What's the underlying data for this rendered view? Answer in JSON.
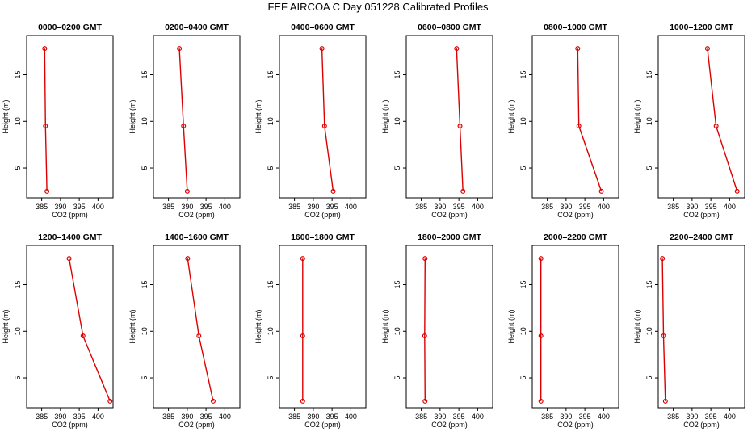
{
  "title": "FEF AIRCOA C  Day 051228  Calibrated Profiles",
  "colors": {
    "line": "#dd0000",
    "axis": "#000000"
  },
  "chart_data": [
    {
      "type": "line",
      "title": "0000–0200 GMT",
      "xlabel": "CO2 (ppm)",
      "ylabel": "Height (m)",
      "xlim": [
        381,
        404
      ],
      "ylim": [
        1.8,
        19.2
      ],
      "xticks": [
        385,
        390,
        395,
        400
      ],
      "yticks": [
        5,
        10,
        15
      ],
      "grid": false,
      "series": [
        {
          "x": [
            386.4,
            386.0,
            385.8
          ],
          "y": [
            2.5,
            9.5,
            17.8
          ]
        }
      ]
    },
    {
      "type": "line",
      "title": "0200–0400 GMT",
      "xlabel": "CO2 (ppm)",
      "ylabel": "Height (m)",
      "xlim": [
        381,
        404
      ],
      "ylim": [
        1.8,
        19.2
      ],
      "xticks": [
        385,
        390,
        395,
        400
      ],
      "yticks": [
        5,
        10,
        15
      ],
      "grid": false,
      "series": [
        {
          "x": [
            390.0,
            389.0,
            387.9
          ],
          "y": [
            2.5,
            9.5,
            17.8
          ]
        }
      ]
    },
    {
      "type": "line",
      "title": "0400–0600 GMT",
      "xlabel": "CO2 (ppm)",
      "ylabel": "Height (m)",
      "xlim": [
        381,
        404
      ],
      "ylim": [
        1.8,
        19.2
      ],
      "xticks": [
        385,
        390,
        395,
        400
      ],
      "yticks": [
        5,
        10,
        15
      ],
      "grid": false,
      "series": [
        {
          "x": [
            395.3,
            393.0,
            392.3
          ],
          "y": [
            2.5,
            9.5,
            17.8
          ]
        }
      ]
    },
    {
      "type": "line",
      "title": "0600–0800 GMT",
      "xlabel": "CO2 (ppm)",
      "ylabel": "Height (m)",
      "xlim": [
        381,
        404
      ],
      "ylim": [
        1.8,
        19.2
      ],
      "xticks": [
        385,
        390,
        395,
        400
      ],
      "yticks": [
        5,
        10,
        15
      ],
      "grid": false,
      "series": [
        {
          "x": [
            396.1,
            395.3,
            394.4
          ],
          "y": [
            2.5,
            9.5,
            17.8
          ]
        }
      ]
    },
    {
      "type": "line",
      "title": "0800–1000 GMT",
      "xlabel": "CO2 (ppm)",
      "ylabel": "Height (m)",
      "xlim": [
        381,
        404
      ],
      "ylim": [
        1.8,
        19.2
      ],
      "xticks": [
        385,
        390,
        395,
        400
      ],
      "yticks": [
        5,
        10,
        15
      ],
      "grid": false,
      "series": [
        {
          "x": [
            399.4,
            393.4,
            393.1
          ],
          "y": [
            2.5,
            9.5,
            17.8
          ]
        }
      ]
    },
    {
      "type": "line",
      "title": "1000–1200 GMT",
      "xlabel": "CO2 (ppm)",
      "ylabel": "Height (m)",
      "xlim": [
        381,
        404
      ],
      "ylim": [
        1.8,
        19.2
      ],
      "xticks": [
        385,
        390,
        395,
        400
      ],
      "yticks": [
        5,
        10,
        15
      ],
      "grid": false,
      "series": [
        {
          "x": [
            402.0,
            396.4,
            394.1
          ],
          "y": [
            2.5,
            9.5,
            17.8
          ]
        }
      ]
    },
    {
      "type": "line",
      "title": "1200–1400 GMT",
      "xlabel": "CO2 (ppm)",
      "ylabel": "Height (m)",
      "xlim": [
        381,
        404
      ],
      "ylim": [
        1.8,
        19.2
      ],
      "xticks": [
        385,
        390,
        395,
        400
      ],
      "yticks": [
        5,
        10,
        15
      ],
      "grid": false,
      "series": [
        {
          "x": [
            403.2,
            396.0,
            392.3
          ],
          "y": [
            2.5,
            9.5,
            17.8
          ]
        }
      ]
    },
    {
      "type": "line",
      "title": "1400–1600 GMT",
      "xlabel": "CO2 (ppm)",
      "ylabel": "Height (m)",
      "xlim": [
        381,
        404
      ],
      "ylim": [
        1.8,
        19.2
      ],
      "xticks": [
        385,
        390,
        395,
        400
      ],
      "yticks": [
        5,
        10,
        15
      ],
      "grid": false,
      "series": [
        {
          "x": [
            396.9,
            393.1,
            390.1
          ],
          "y": [
            2.5,
            9.5,
            17.8
          ]
        }
      ]
    },
    {
      "type": "line",
      "title": "1600–1800 GMT",
      "xlabel": "CO2 (ppm)",
      "ylabel": "Height (m)",
      "xlim": [
        381,
        404
      ],
      "ylim": [
        1.8,
        19.2
      ],
      "xticks": [
        385,
        390,
        395,
        400
      ],
      "yticks": [
        5,
        10,
        15
      ],
      "grid": false,
      "series": [
        {
          "x": [
            387.2,
            387.2,
            387.2
          ],
          "y": [
            2.5,
            9.5,
            17.8
          ]
        }
      ]
    },
    {
      "type": "line",
      "title": "1800–2000 GMT",
      "xlabel": "CO2 (ppm)",
      "ylabel": "Height (m)",
      "xlim": [
        381,
        404
      ],
      "ylim": [
        1.8,
        19.2
      ],
      "xticks": [
        385,
        390,
        395,
        400
      ],
      "yticks": [
        5,
        10,
        15
      ],
      "grid": false,
      "series": [
        {
          "x": [
            386.0,
            385.9,
            386.0
          ],
          "y": [
            2.5,
            9.5,
            17.8
          ]
        }
      ]
    },
    {
      "type": "line",
      "title": "2000–2200 GMT",
      "xlabel": "CO2 (ppm)",
      "ylabel": "Height (m)",
      "xlim": [
        381,
        404
      ],
      "ylim": [
        1.8,
        19.2
      ],
      "xticks": [
        385,
        390,
        395,
        400
      ],
      "yticks": [
        5,
        10,
        15
      ],
      "grid": false,
      "series": [
        {
          "x": [
            383.3,
            383.3,
            383.3
          ],
          "y": [
            2.5,
            9.5,
            17.8
          ]
        }
      ]
    },
    {
      "type": "line",
      "title": "2200–2400 GMT",
      "xlabel": "CO2 (ppm)",
      "ylabel": "Height (m)",
      "xlim": [
        381,
        404
      ],
      "ylim": [
        1.8,
        19.2
      ],
      "xticks": [
        385,
        390,
        395,
        400
      ],
      "yticks": [
        5,
        10,
        15
      ],
      "grid": false,
      "series": [
        {
          "x": [
            382.9,
            382.4,
            382.1
          ],
          "y": [
            2.5,
            9.5,
            17.8
          ]
        }
      ]
    }
  ]
}
